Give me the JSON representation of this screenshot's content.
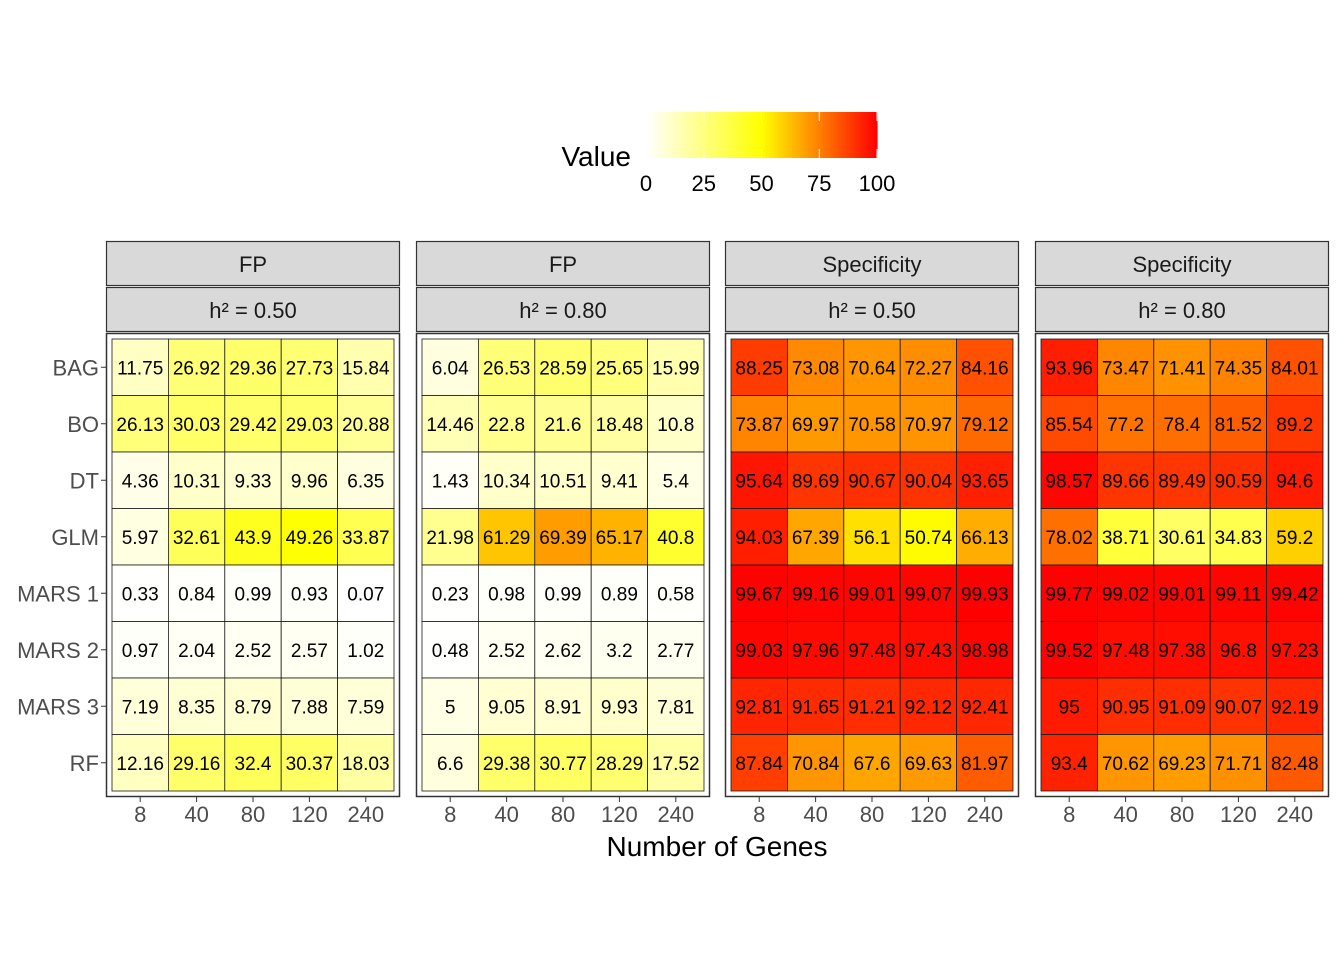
{
  "chart_data": {
    "type": "heatmap",
    "xlabel": "Number of Genes",
    "ylabel": "",
    "x_categories": [
      "8",
      "40",
      "80",
      "120",
      "240"
    ],
    "y_categories": [
      "BAG",
      "BO",
      "DT",
      "GLM",
      "MARS 1",
      "MARS 2",
      "MARS 3",
      "RF"
    ],
    "legend": {
      "title": "Value",
      "ticks": [
        "0",
        "25",
        "50",
        "75",
        "100"
      ],
      "range": [
        0,
        100
      ],
      "position": "top",
      "colors": [
        "#ffffff",
        "#ffff00",
        "#ff0000"
      ]
    },
    "panels": [
      {
        "metric": "FP",
        "heritability": "h² = 0.50",
        "values": [
          [
            "11.75",
            "26.92",
            "29.36",
            "27.73",
            "15.84"
          ],
          [
            "26.13",
            "30.03",
            "29.42",
            "29.03",
            "20.88"
          ],
          [
            "4.36",
            "10.31",
            "9.33",
            "9.96",
            "6.35"
          ],
          [
            "5.97",
            "32.61",
            "43.9",
            "49.26",
            "33.87"
          ],
          [
            "0.33",
            "0.84",
            "0.99",
            "0.93",
            "0.07"
          ],
          [
            "0.97",
            "2.04",
            "2.52",
            "2.57",
            "1.02"
          ],
          [
            "7.19",
            "8.35",
            "8.79",
            "7.88",
            "7.59"
          ],
          [
            "12.16",
            "29.16",
            "32.4",
            "30.37",
            "18.03"
          ]
        ]
      },
      {
        "metric": "FP",
        "heritability": "h² = 0.80",
        "values": [
          [
            "6.04",
            "26.53",
            "28.59",
            "25.65",
            "15.99"
          ],
          [
            "14.46",
            "22.8",
            "21.6",
            "18.48",
            "10.8"
          ],
          [
            "1.43",
            "10.34",
            "10.51",
            "9.41",
            "5.4"
          ],
          [
            "21.98",
            "61.29",
            "69.39",
            "65.17",
            "40.8"
          ],
          [
            "0.23",
            "0.98",
            "0.99",
            "0.89",
            "0.58"
          ],
          [
            "0.48",
            "2.52",
            "2.62",
            "3.2",
            "2.77"
          ],
          [
            "5",
            "9.05",
            "8.91",
            "9.93",
            "7.81"
          ],
          [
            "6.6",
            "29.38",
            "30.77",
            "28.29",
            "17.52"
          ]
        ]
      },
      {
        "metric": "Specificity",
        "heritability": "h² = 0.50",
        "values": [
          [
            "88.25",
            "73.08",
            "70.64",
            "72.27",
            "84.16"
          ],
          [
            "73.87",
            "69.97",
            "70.58",
            "70.97",
            "79.12"
          ],
          [
            "95.64",
            "89.69",
            "90.67",
            "90.04",
            "93.65"
          ],
          [
            "94.03",
            "67.39",
            "56.1",
            "50.74",
            "66.13"
          ],
          [
            "99.67",
            "99.16",
            "99.01",
            "99.07",
            "99.93"
          ],
          [
            "99.03",
            "97.96",
            "97.48",
            "97.43",
            "98.98"
          ],
          [
            "92.81",
            "91.65",
            "91.21",
            "92.12",
            "92.41"
          ],
          [
            "87.84",
            "70.84",
            "67.6",
            "69.63",
            "81.97"
          ]
        ]
      },
      {
        "metric": "Specificity",
        "heritability": "h² = 0.80",
        "values": [
          [
            "93.96",
            "73.47",
            "71.41",
            "74.35",
            "84.01"
          ],
          [
            "85.54",
            "77.2",
            "78.4",
            "81.52",
            "89.2"
          ],
          [
            "98.57",
            "89.66",
            "89.49",
            "90.59",
            "94.6"
          ],
          [
            "78.02",
            "38.71",
            "30.61",
            "34.83",
            "59.2"
          ],
          [
            "99.77",
            "99.02",
            "99.01",
            "99.11",
            "99.42"
          ],
          [
            "99.52",
            "97.48",
            "97.38",
            "96.8",
            "97.23"
          ],
          [
            "95",
            "90.95",
            "91.09",
            "90.07",
            "92.19"
          ],
          [
            "93.4",
            "70.62",
            "69.23",
            "71.71",
            "82.48"
          ]
        ]
      }
    ]
  }
}
